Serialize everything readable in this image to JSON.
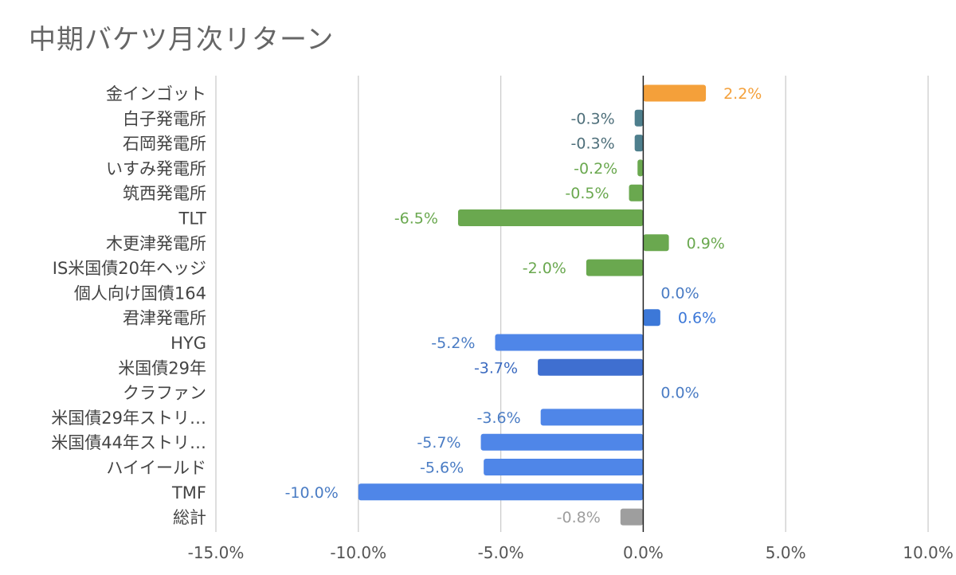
{
  "chart_data": {
    "type": "bar",
    "orientation": "horizontal",
    "title": "中期バケツ月次リターン",
    "xlabel": "",
    "ylabel": "",
    "xlim": [
      -15,
      10
    ],
    "x_ticks": [
      -15,
      -10,
      -5,
      0,
      5,
      10
    ],
    "x_tick_labels": [
      "-15.0%",
      "-10.0%",
      "-5.0%",
      "0.0%",
      "5.0%",
      "10.0%"
    ],
    "grid": "vertical",
    "legend": "none",
    "categories": [
      "金インゴット",
      "白子発電所",
      "石岡発電所",
      "いすみ発電所",
      "筑西発電所",
      "TLT",
      "木更津発電所",
      "IS米国債20年ヘッジ",
      "個人向け国債164",
      "君津発電所",
      "HYG",
      "米国債29年",
      "クラファン",
      "米国債29年ストリ…",
      "米国債44年ストリ…",
      "ハイイールド",
      "TMF",
      "総計"
    ],
    "values": [
      2.2,
      -0.3,
      -0.3,
      -0.2,
      -0.5,
      -6.5,
      0.9,
      -2.0,
      0.0,
      0.6,
      -5.2,
      -3.7,
      0.0,
      -3.6,
      -5.7,
      -5.6,
      -10.0,
      -0.8
    ],
    "data_labels": [
      "2.2%",
      "-0.3%",
      "-0.3%",
      "-0.2%",
      "-0.5%",
      "-6.5%",
      "0.9%",
      "-2.0%",
      "0.0%",
      "0.6%",
      "-5.2%",
      "-3.7%",
      "0.0%",
      "-3.6%",
      "-5.7%",
      "-5.6%",
      "-10.0%",
      "-0.8%"
    ],
    "bar_colors": [
      "#F4A03A",
      "#4E7F8D",
      "#4E7F8D",
      "#6AA84F",
      "#6AA84F",
      "#6AA84F",
      "#6AA84F",
      "#6AA84F",
      "#4A7CC4",
      "#3C78D8",
      "#4F86E8",
      "#3F6FD0",
      "#4A7CC4",
      "#4F86E8",
      "#4F86E8",
      "#4F86E8",
      "#4F86E8",
      "#9E9E9E"
    ],
    "label_colors": [
      "#F4A03A",
      "#4E6F7A",
      "#4E6F7A",
      "#6AA84F",
      "#6AA84F",
      "#6AA84F",
      "#6AA84F",
      "#6AA84F",
      "#4A7CC4",
      "#3C78D8",
      "#4A7CC4",
      "#3C6BC0",
      "#4A7CC4",
      "#4A7CC4",
      "#4A7CC4",
      "#4A7CC4",
      "#4A7CC4",
      "#9E9E9E"
    ]
  }
}
